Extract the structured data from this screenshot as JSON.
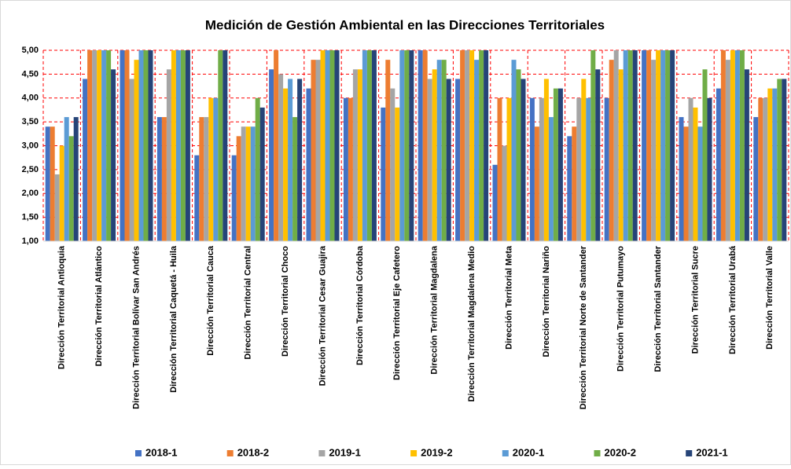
{
  "chart_data": {
    "type": "bar",
    "title": "Medición de Gestión Ambiental en las Direcciones Territoriales",
    "categories": [
      "Dirección Territorial Antioquia",
      "Dirección Territorial Atlántico",
      "Dirección Territorial Bolívar San Andrés",
      "Dirección Territorial Caquetá - Huila",
      "Dirección Territorial Cauca",
      "Dirección Territorial Central",
      "Dirección Territorial Choco",
      "Dirección Territorial Cesar Guajira",
      "Dirección Territorial Córdoba",
      "Dirección Territorial Eje Cafetero",
      "Dirección Territorial Magdalena",
      "Dirección Territorial Magdalena Medio",
      "Dirección Territorial Meta",
      "Dirección Territorial Nariño",
      "Dirección Territorial Norte de Santander",
      "Dirección Territorial Putumayo",
      "Dirección Territorial Santander",
      "Dirección Territorial Sucre",
      "Dirección Territorial Urabá",
      "Dirección Territorial Valle"
    ],
    "series": [
      {
        "name": "2018-1",
        "color": "#4472c4",
        "values": [
          3.4,
          4.4,
          5,
          3.6,
          2.8,
          2.8,
          4.6,
          4.2,
          4.0,
          3.8,
          5,
          4.4,
          2.6,
          4.0,
          3.2,
          4.0,
          5,
          3.6,
          4.2,
          3.6
        ]
      },
      {
        "name": "2018-2",
        "color": "#ed7d31",
        "values": [
          3.4,
          5,
          5,
          3.6,
          3.6,
          3.2,
          5,
          4.8,
          4.0,
          4.8,
          5,
          5,
          4.0,
          3.4,
          3.4,
          4.8,
          5,
          3.4,
          5,
          4.0
        ]
      },
      {
        "name": "2019-1",
        "color": "#a5a5a5",
        "values": [
          2.4,
          5,
          4.4,
          4.6,
          3.6,
          3.4,
          4.5,
          4.8,
          4.6,
          4.2,
          4.4,
          5,
          3.0,
          4.0,
          4.0,
          5,
          4.8,
          4.0,
          4.8,
          4.0
        ]
      },
      {
        "name": "2019-2",
        "color": "#ffc000",
        "values": [
          3.0,
          5,
          4.8,
          5,
          4.0,
          3.4,
          4.2,
          5,
          4.6,
          3.8,
          4.6,
          5,
          4.0,
          4.4,
          4.4,
          4.6,
          5,
          3.8,
          5,
          4.2
        ]
      },
      {
        "name": "2020-1",
        "color": "#5b9bd5",
        "values": [
          3.6,
          5,
          5,
          5,
          4.0,
          3.4,
          4.4,
          5,
          5,
          5,
          4.8,
          4.8,
          4.8,
          3.6,
          4.0,
          5,
          5,
          3.4,
          5,
          4.2
        ]
      },
      {
        "name": "2020-2",
        "color": "#70ad47",
        "values": [
          3.2,
          5,
          5,
          5,
          5,
          4.0,
          3.6,
          5,
          5,
          5,
          4.8,
          5,
          4.6,
          4.2,
          5,
          5,
          5,
          4.6,
          5,
          4.4
        ]
      },
      {
        "name": "2021-1",
        "color": "#264478",
        "values": [
          3.6,
          4.6,
          5,
          5,
          5,
          3.8,
          4.4,
          5,
          5,
          5,
          4.4,
          5,
          4.4,
          4.2,
          4.6,
          5,
          5,
          4.0,
          4.6,
          4.4
        ]
      }
    ],
    "ylim": [
      1,
      5
    ],
    "yticks": [
      {
        "value": 1,
        "label": "1,00"
      },
      {
        "value": 1.5,
        "label": "1,50"
      },
      {
        "value": 2,
        "label": "2,00"
      },
      {
        "value": 2.5,
        "label": "2,50"
      },
      {
        "value": 3,
        "label": "3,00"
      },
      {
        "value": 3.5,
        "label": "3,50"
      },
      {
        "value": 4,
        "label": "4,00"
      },
      {
        "value": 4.5,
        "label": "4,50"
      },
      {
        "value": 5,
        "label": "5,00"
      }
    ],
    "grid": true,
    "grid_color": "#ff0000",
    "legend": "bottom"
  }
}
